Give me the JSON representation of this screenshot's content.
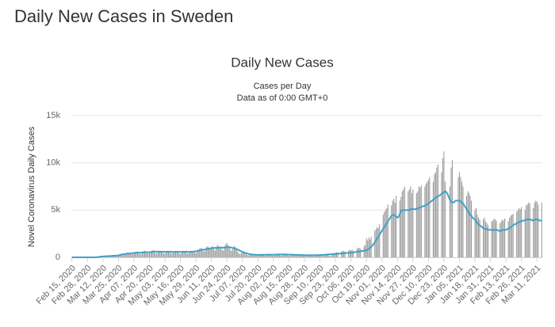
{
  "page_title": "Daily New Cases in Sweden",
  "chart_data": {
    "type": "bar",
    "title": "Daily New Cases",
    "subtitle": "Cases per Day",
    "subtitle_note": "Data as of 0:00 GMT+0",
    "y_label": "Novel Coronavirus Daily Cases",
    "ylim": [
      0,
      15000
    ],
    "yticks": [
      0,
      {
        "value": 5000,
        "label": "5k"
      },
      {
        "value": 10000,
        "label": "10k"
      },
      {
        "value": 15000,
        "label": "15k"
      }
    ],
    "grid": true,
    "categories": [
      "Feb 15, 2020",
      null,
      null,
      null,
      null,
      null,
      null,
      null,
      null,
      null,
      null,
      null,
      null,
      "Feb 28, 2020",
      null,
      null,
      null,
      null,
      null,
      null,
      null,
      null,
      null,
      null,
      null,
      null,
      "Mar 12, 2020",
      null,
      null,
      null,
      null,
      null,
      null,
      null,
      null,
      null,
      null,
      null,
      null,
      "Mar 25, 2020",
      null,
      null,
      null,
      null,
      null,
      null,
      null,
      null,
      null,
      null,
      null,
      null,
      "Apr 07, 2020",
      null,
      null,
      null,
      null,
      null,
      null,
      null,
      null,
      null,
      null,
      null,
      null,
      "Apr 20, 2020",
      null,
      null,
      null,
      null,
      null,
      null,
      null,
      null,
      null,
      null,
      null,
      null,
      "May 03, 2020",
      null,
      null,
      null,
      null,
      null,
      null,
      null,
      null,
      null,
      null,
      null,
      null,
      "May 16, 2020",
      null,
      null,
      null,
      null,
      null,
      null,
      null,
      null,
      null,
      null,
      null,
      null,
      "May 29, 2020",
      null,
      null,
      null,
      null,
      null,
      null,
      null,
      null,
      null,
      null,
      null,
      null,
      "Jun 11, 2020",
      null,
      null,
      null,
      null,
      null,
      null,
      null,
      null,
      null,
      null,
      null,
      null,
      "Jun 24, 2020",
      null,
      null,
      null,
      null,
      null,
      null,
      null,
      null,
      null,
      null,
      null,
      null,
      "Jul 07, 2020",
      null,
      null,
      null,
      null,
      null,
      null,
      null,
      null,
      null,
      null,
      null,
      null,
      "Jul 20, 2020",
      null,
      null,
      null,
      null,
      null,
      null,
      null,
      null,
      null,
      null,
      null,
      null,
      "Aug 02, 2020",
      null,
      null,
      null,
      null,
      null,
      null,
      null,
      null,
      null,
      null,
      null,
      null,
      "Aug 15, 2020",
      null,
      null,
      null,
      null,
      null,
      null,
      null,
      null,
      null,
      null,
      null,
      null,
      "Aug 28, 2020",
      null,
      null,
      null,
      null,
      null,
      null,
      null,
      null,
      null,
      null,
      null,
      null,
      "Sep 10, 2020",
      null,
      null,
      null,
      null,
      null,
      null,
      null,
      null,
      null,
      null,
      null,
      null,
      "Sep 23, 2020",
      null,
      null,
      null,
      null,
      null,
      null,
      null,
      null,
      null,
      null,
      null,
      null,
      "Oct 06, 2020",
      null,
      null,
      null,
      null,
      null,
      null,
      null,
      null,
      null,
      null,
      null,
      null,
      "Oct 19, 2020",
      null,
      null,
      null,
      null,
      null,
      null,
      null,
      null,
      null,
      null,
      null,
      null,
      "Nov 01, 2020",
      null,
      null,
      null,
      null,
      null,
      null,
      null,
      null,
      null,
      null,
      null,
      null,
      "Nov 14, 2020",
      null,
      null,
      null,
      null,
      null,
      null,
      null,
      null,
      null,
      null,
      null,
      null,
      "Nov 27, 2020",
      null,
      null,
      null,
      null,
      null,
      null,
      null,
      null,
      null,
      null,
      null,
      null,
      "Dec 10, 2020",
      null,
      null,
      null,
      null,
      null,
      null,
      null,
      null,
      null,
      null,
      null,
      null,
      "Dec 23, 2020",
      null,
      null,
      null,
      null,
      null,
      null,
      null,
      null,
      null,
      null,
      null,
      null,
      "Jan 05, 2021",
      null,
      null,
      null,
      null,
      null,
      null,
      null,
      null,
      null,
      null,
      null,
      null,
      "Jan 18, 2021",
      null,
      null,
      null,
      null,
      null,
      null,
      null,
      null,
      null,
      null,
      null,
      null,
      "Jan 31, 2021",
      null,
      null,
      null,
      null,
      null,
      null,
      null,
      null,
      null,
      null,
      null,
      null,
      "Feb 13, 2021",
      null,
      null,
      null,
      null,
      null,
      null,
      null,
      null,
      null,
      null,
      null,
      null,
      "Feb 26, 2021",
      null,
      null,
      null,
      null,
      null,
      null,
      null,
      null,
      null,
      null,
      null,
      null,
      "Mar 11, 2021",
      null,
      null,
      null,
      null
    ],
    "series": [
      {
        "type": "bar",
        "color": "#999999",
        "values": [
          0,
          0,
          0,
          0,
          0,
          0,
          0,
          0,
          0,
          0,
          0,
          1,
          0,
          1,
          2,
          3,
          5,
          10,
          15,
          20,
          30,
          60,
          80,
          100,
          150,
          160,
          150,
          130,
          120,
          110,
          130,
          140,
          160,
          180,
          190,
          200,
          190,
          180,
          200,
          250,
          300,
          350,
          400,
          350,
          300,
          400,
          500,
          450,
          400,
          350,
          300,
          350,
          500,
          550,
          600,
          450,
          400,
          350,
          300,
          600,
          650,
          700,
          550,
          450,
          400,
          500,
          650,
          700,
          750,
          600,
          450,
          400,
          550,
          700,
          650,
          600,
          500,
          400,
          400,
          600,
          700,
          650,
          600,
          450,
          400,
          500,
          650,
          700,
          600,
          500,
          400,
          350,
          500,
          700,
          650,
          600,
          550,
          400,
          450,
          600,
          700,
          650,
          600,
          500,
          450,
          550,
          800,
          900,
          1000,
          950,
          700,
          600,
          800,
          1100,
          1200,
          1000,
          900,
          1100,
          1200,
          900,
          700,
          1000,
          1300,
          1200,
          1100,
          1000,
          800,
          700,
          1200,
          1400,
          1500,
          1300,
          1000,
          800,
          700,
          1000,
          1200,
          1100,
          800,
          600,
          400,
          300,
          500,
          600,
          550,
          400,
          300,
          250,
          200,
          300,
          400,
          350,
          300,
          250,
          200,
          150,
          250,
          300,
          350,
          300,
          250,
          200,
          150,
          250,
          300,
          350,
          300,
          250,
          200,
          150,
          200,
          300,
          350,
          400,
          300,
          200,
          150,
          250,
          350,
          400,
          300,
          250,
          150,
          150,
          300,
          350,
          300,
          250,
          200,
          150,
          150,
          250,
          300,
          250,
          200,
          200,
          150,
          100,
          200,
          250,
          300,
          250,
          150,
          100,
          200,
          250,
          300,
          250,
          250,
          200,
          150,
          150,
          300,
          350,
          400,
          350,
          150,
          100,
          350,
          400,
          450,
          500,
          550,
          500,
          0,
          0,
          600,
          650,
          700,
          600,
          0,
          0,
          700,
          800,
          750,
          800,
          700,
          0,
          0,
          900,
          1000,
          1000,
          900,
          0,
          0,
          1200,
          1300,
          2000,
          1800,
          2100,
          1900,
          2200,
          0,
          0,
          2800,
          3000,
          3200,
          3100,
          3500,
          0,
          0,
          4500,
          4800,
          5000,
          5200,
          5600,
          0,
          0,
          5500,
          6000,
          6200,
          5800,
          6500,
          0,
          0,
          6000,
          6400,
          7000,
          7200,
          7500,
          0,
          0,
          7000,
          7200,
          7500,
          6800,
          7200,
          0,
          0,
          6800,
          7000,
          7500,
          7400,
          7600,
          0,
          0,
          7500,
          7800,
          8000,
          8200,
          8500,
          0,
          0,
          8000,
          8800,
          9000,
          9500,
          9800,
          0,
          0,
          9000,
          10500,
          11200,
          8000,
          0,
          0,
          0,
          7500,
          9500,
          10300,
          0,
          0,
          0,
          0,
          8500,
          9000,
          8500,
          8000,
          7500,
          0,
          0,
          6500,
          7000,
          6800,
          6500,
          6000,
          0,
          0,
          5000,
          5200,
          4500,
          4200,
          4000,
          0,
          0,
          4000,
          4200,
          3800,
          3600,
          3400,
          0,
          0,
          3800,
          3900,
          4100,
          4000,
          3900,
          0,
          0,
          3600,
          3800,
          4000,
          3900,
          4100,
          0,
          0,
          3800,
          4200,
          4400,
          4500,
          4600,
          0,
          0,
          4800,
          5000,
          5200,
          5100,
          5300,
          0,
          0,
          5000,
          5500,
          5600,
          5800,
          5700,
          0,
          0,
          5200,
          5800,
          6000,
          5900,
          5600,
          0,
          0,
          5800
        ]
      },
      {
        "type": "line",
        "color": "#3fa1c8",
        "values": [
          0,
          0,
          0,
          0,
          0,
          0,
          0,
          0,
          0,
          0,
          0,
          0,
          0,
          0,
          0,
          1,
          2,
          3,
          5,
          8,
          12,
          20,
          30,
          45,
          60,
          80,
          100,
          110,
          120,
          125,
          130,
          135,
          140,
          150,
          160,
          170,
          175,
          180,
          190,
          210,
          240,
          270,
          300,
          320,
          340,
          360,
          380,
          400,
          410,
          420,
          430,
          440,
          460,
          480,
          500,
          510,
          500,
          490,
          480,
          500,
          520,
          540,
          550,
          550,
          540,
          550,
          560,
          580,
          600,
          620,
          610,
          600,
          590,
          590,
          600,
          610,
          600,
          590,
          580,
          580,
          590,
          600,
          600,
          590,
          580,
          570,
          570,
          580,
          590,
          590,
          580,
          570,
          570,
          580,
          590,
          600,
          600,
          590,
          580,
          580,
          590,
          600,
          610,
          620,
          640,
          670,
          700,
          730,
          760,
          780,
          800,
          820,
          850,
          880,
          900,
          920,
          940,
          960,
          980,
          990,
          1000,
          1010,
          1020,
          1030,
          1040,
          1040,
          1030,
          1020,
          1030,
          1050,
          1070,
          1080,
          1070,
          1050,
          1020,
          990,
          960,
          920,
          870,
          820,
          760,
          700,
          640,
          580,
          530,
          480,
          440,
          400,
          370,
          340,
          320,
          300,
          290,
          280,
          270,
          260,
          260,
          260,
          260,
          270,
          270,
          270,
          270,
          270,
          280,
          280,
          280,
          280,
          280,
          280,
          280,
          290,
          290,
          300,
          300,
          300,
          300,
          300,
          300,
          300,
          300,
          290,
          290,
          280,
          280,
          270,
          270,
          260,
          260,
          250,
          250,
          240,
          240,
          240,
          230,
          230,
          230,
          220,
          220,
          220,
          220,
          220,
          220,
          220,
          230,
          230,
          230,
          240,
          240,
          250,
          250,
          260,
          270,
          280,
          290,
          300,
          310,
          320,
          330,
          340,
          350,
          360,
          370,
          380,
          390,
          400,
          410,
          420,
          430,
          440,
          450,
          460,
          470,
          480,
          500,
          510,
          520,
          540,
          560,
          580,
          600,
          620,
          640,
          660,
          680,
          700,
          720,
          760,
          820,
          900,
          1000,
          1100,
          1250,
          1400,
          1600,
          1800,
          2000,
          2200,
          2400,
          2600,
          2800,
          3000,
          3200,
          3400,
          3600,
          3800,
          4000,
          4200,
          4400,
          4500,
          4500,
          4400,
          4300,
          4200,
          4300,
          4600,
          4900,
          5000,
          5000,
          5000,
          5000,
          5000,
          5000,
          5000,
          5100,
          5100,
          5100,
          5100,
          5100,
          5100,
          5200,
          5200,
          5300,
          5300,
          5400,
          5400,
          5500,
          5500,
          5600,
          5700,
          5800,
          5900,
          6000,
          6100,
          6200,
          6300,
          6400,
          6500,
          6500,
          6600,
          6700,
          6800,
          6900,
          7000,
          6900,
          6700,
          6400,
          6100,
          5900,
          5800,
          5800,
          5900,
          6000,
          6000,
          6000,
          6000,
          5900,
          5800,
          5700,
          5500,
          5300,
          5100,
          4900,
          4700,
          4500,
          4400,
          4200,
          4100,
          4000,
          3800,
          3600,
          3500,
          3400,
          3300,
          3200,
          3100,
          3000,
          3000,
          3000,
          2900,
          2900,
          2900,
          2900,
          2900,
          2900,
          2900,
          2900,
          2900,
          2800,
          2800,
          2800,
          2900,
          2900,
          2900,
          2900,
          3000,
          3000,
          3100,
          3200,
          3300,
          3400,
          3500,
          3500,
          3600,
          3700,
          3700,
          3800,
          3800,
          3900,
          3900,
          3900,
          4000,
          4000,
          4000,
          4000,
          4000,
          3900,
          3900,
          4000,
          4000,
          4000,
          4000,
          3900,
          3900,
          3900
        ]
      }
    ]
  }
}
